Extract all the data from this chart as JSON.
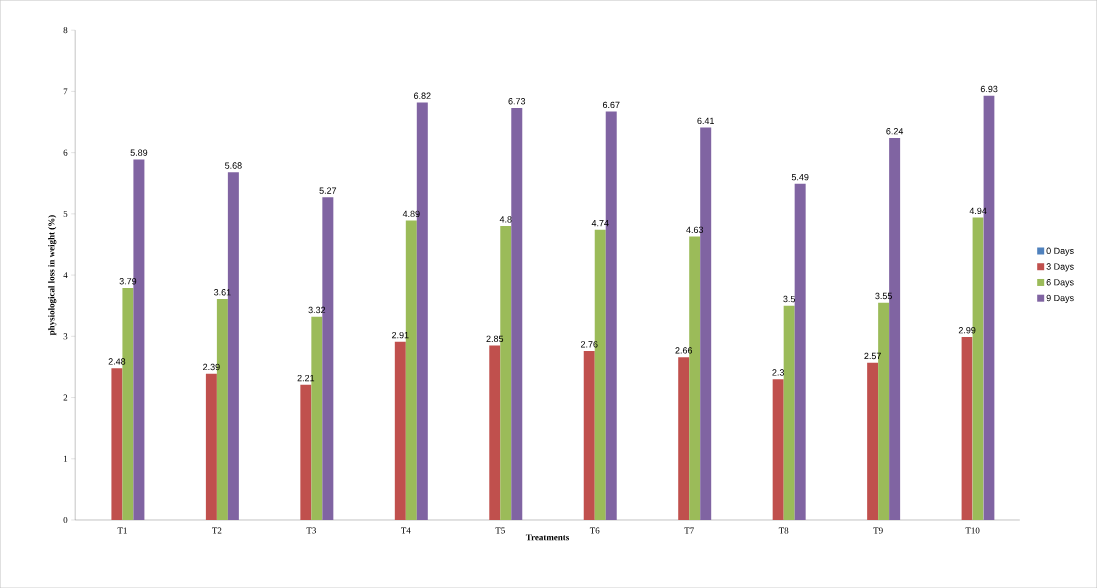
{
  "chart_data": {
    "type": "bar",
    "xlabel": "Treatments",
    "ylabel": "physiological loss in weight (%)",
    "categories": [
      "T1",
      "T2",
      "T3",
      "T4",
      "T5",
      "T6",
      "T7",
      "T8",
      "T9",
      "T10"
    ],
    "series": [
      {
        "name": "0 Days",
        "color": "#4f81bd",
        "values": [
          0,
          0,
          0,
          0,
          0,
          0,
          0,
          0,
          0,
          0
        ],
        "value_labels": [
          null,
          null,
          null,
          null,
          null,
          null,
          null,
          null,
          null,
          null
        ]
      },
      {
        "name": "3 Days",
        "color": "#c0504d",
        "values": [
          2.48,
          2.39,
          2.21,
          2.91,
          2.85,
          2.76,
          2.66,
          2.3,
          2.57,
          2.99
        ],
        "value_labels": [
          "2.48",
          "2.39",
          "2.21",
          "2.91",
          "2.85",
          "2.76",
          "2.66",
          "2.3",
          "2.57",
          "2.99"
        ]
      },
      {
        "name": "6 Days",
        "color": "#9bbb59",
        "values": [
          3.79,
          3.61,
          3.32,
          4.89,
          4.8,
          4.74,
          4.63,
          3.5,
          3.55,
          4.94
        ],
        "value_labels": [
          "3.79",
          "3.61",
          "3.32",
          "4.89",
          "4.8",
          "4.74",
          "4.63",
          "3.5",
          "3.55",
          "4.94"
        ]
      },
      {
        "name": "9 Days",
        "color": "#8064a2",
        "values": [
          5.89,
          5.68,
          5.27,
          6.82,
          6.73,
          6.67,
          6.41,
          5.49,
          6.24,
          6.93
        ],
        "value_labels": [
          "5.89",
          "5.68",
          "5.27",
          "6.82",
          "6.73",
          "6.67",
          "6.41",
          "5.49",
          "6.24",
          "6.93"
        ]
      }
    ],
    "ylim": [
      0,
      8
    ],
    "yticks": [
      0,
      1,
      2,
      3,
      4,
      5,
      6,
      7,
      8
    ],
    "grid": false,
    "legend": "right"
  }
}
